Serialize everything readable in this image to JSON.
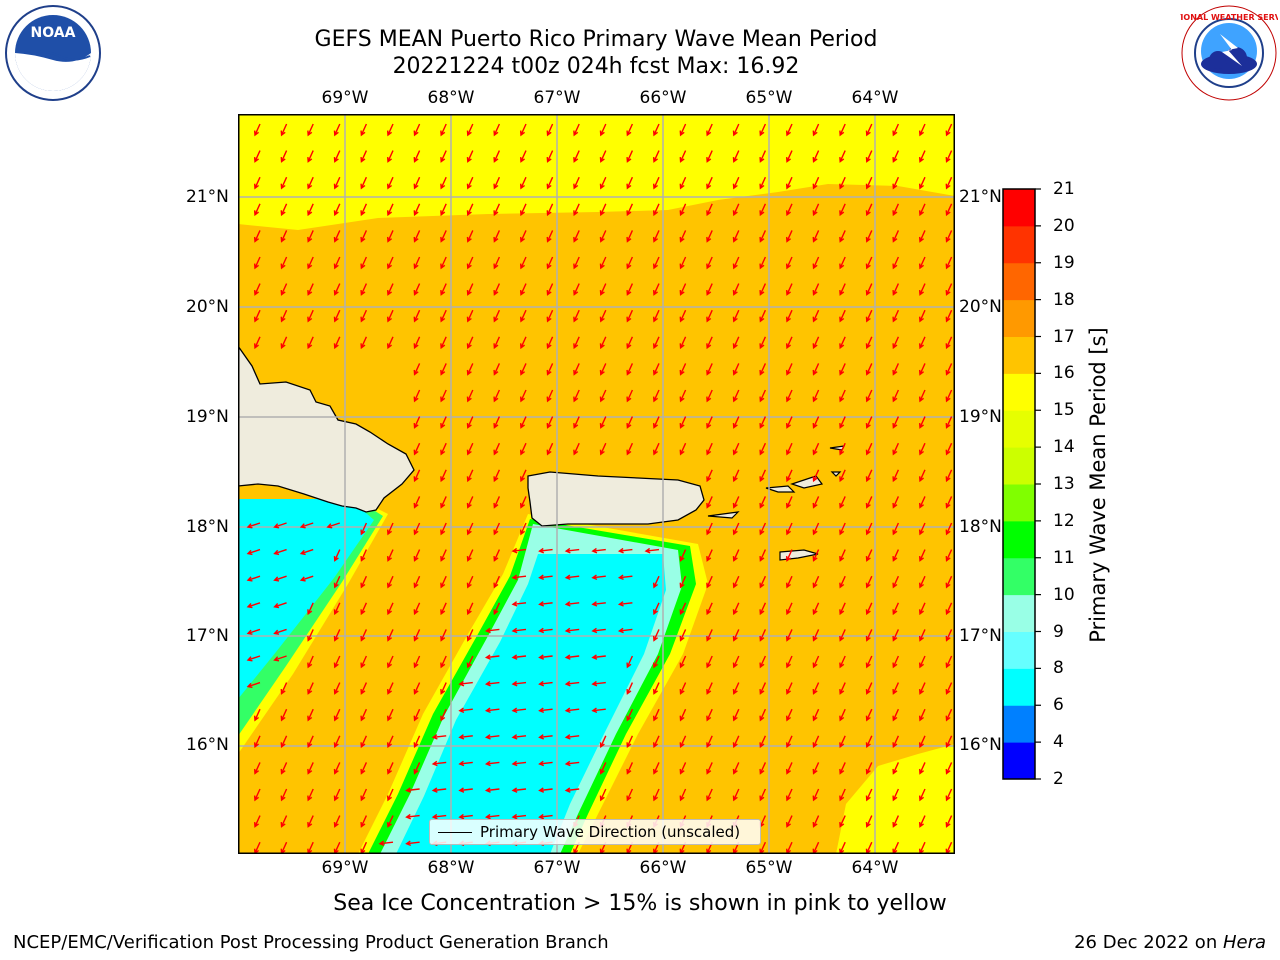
{
  "title": {
    "line1": "GEFS MEAN Puerto Rico Primary Wave Mean Period",
    "line2": "20221224 t00z 024h fcst   Max: 16.92"
  },
  "logos": {
    "left": {
      "icon": "noaa-logo-icon",
      "text": "NOAA"
    },
    "right": {
      "icon": "nws-logo-icon",
      "text": "NATIONAL WEATHER SERVICE"
    }
  },
  "map": {
    "lon_ticks": [
      "69°W",
      "68°W",
      "67°W",
      "66°W",
      "65°W",
      "64°W"
    ],
    "lat_ticks": [
      "21°N",
      "20°N",
      "19°N",
      "18°N",
      "17°N",
      "16°N"
    ],
    "lon_range": [
      -70.0,
      -63.25
    ],
    "lat_range": [
      15.0,
      21.75
    ],
    "grid": true,
    "vector_color": "#ff0000",
    "land_color": "#efecdd"
  },
  "colorbar": {
    "label": "Primary Wave Mean Period [s]",
    "ticks": [
      "21",
      "20",
      "19",
      "18",
      "17",
      "16",
      "15",
      "14",
      "13",
      "12",
      "11",
      "10",
      "9",
      "8",
      "6",
      "4",
      "2"
    ],
    "colors": [
      "#0000ff",
      "#0080ff",
      "#00ffff",
      "#66ffff",
      "#99ffe6",
      "#33ff66",
      "#00ff00",
      "#80ff00",
      "#ccff00",
      "#e6ff00",
      "#ffff00",
      "#ffc400",
      "#ff9900",
      "#ff6600",
      "#ff3300",
      "#ff0000"
    ]
  },
  "legend": {
    "label": "Primary Wave Direction (unscaled)"
  },
  "caption": "Sea Ice Concentration > 15% is shown in pink to yellow",
  "footer": {
    "left": "NCEP/EMC/Verification Post Processing Product Generation Branch",
    "right_prefix": "26 Dec 2022 on ",
    "right_italic": "Hera"
  }
}
